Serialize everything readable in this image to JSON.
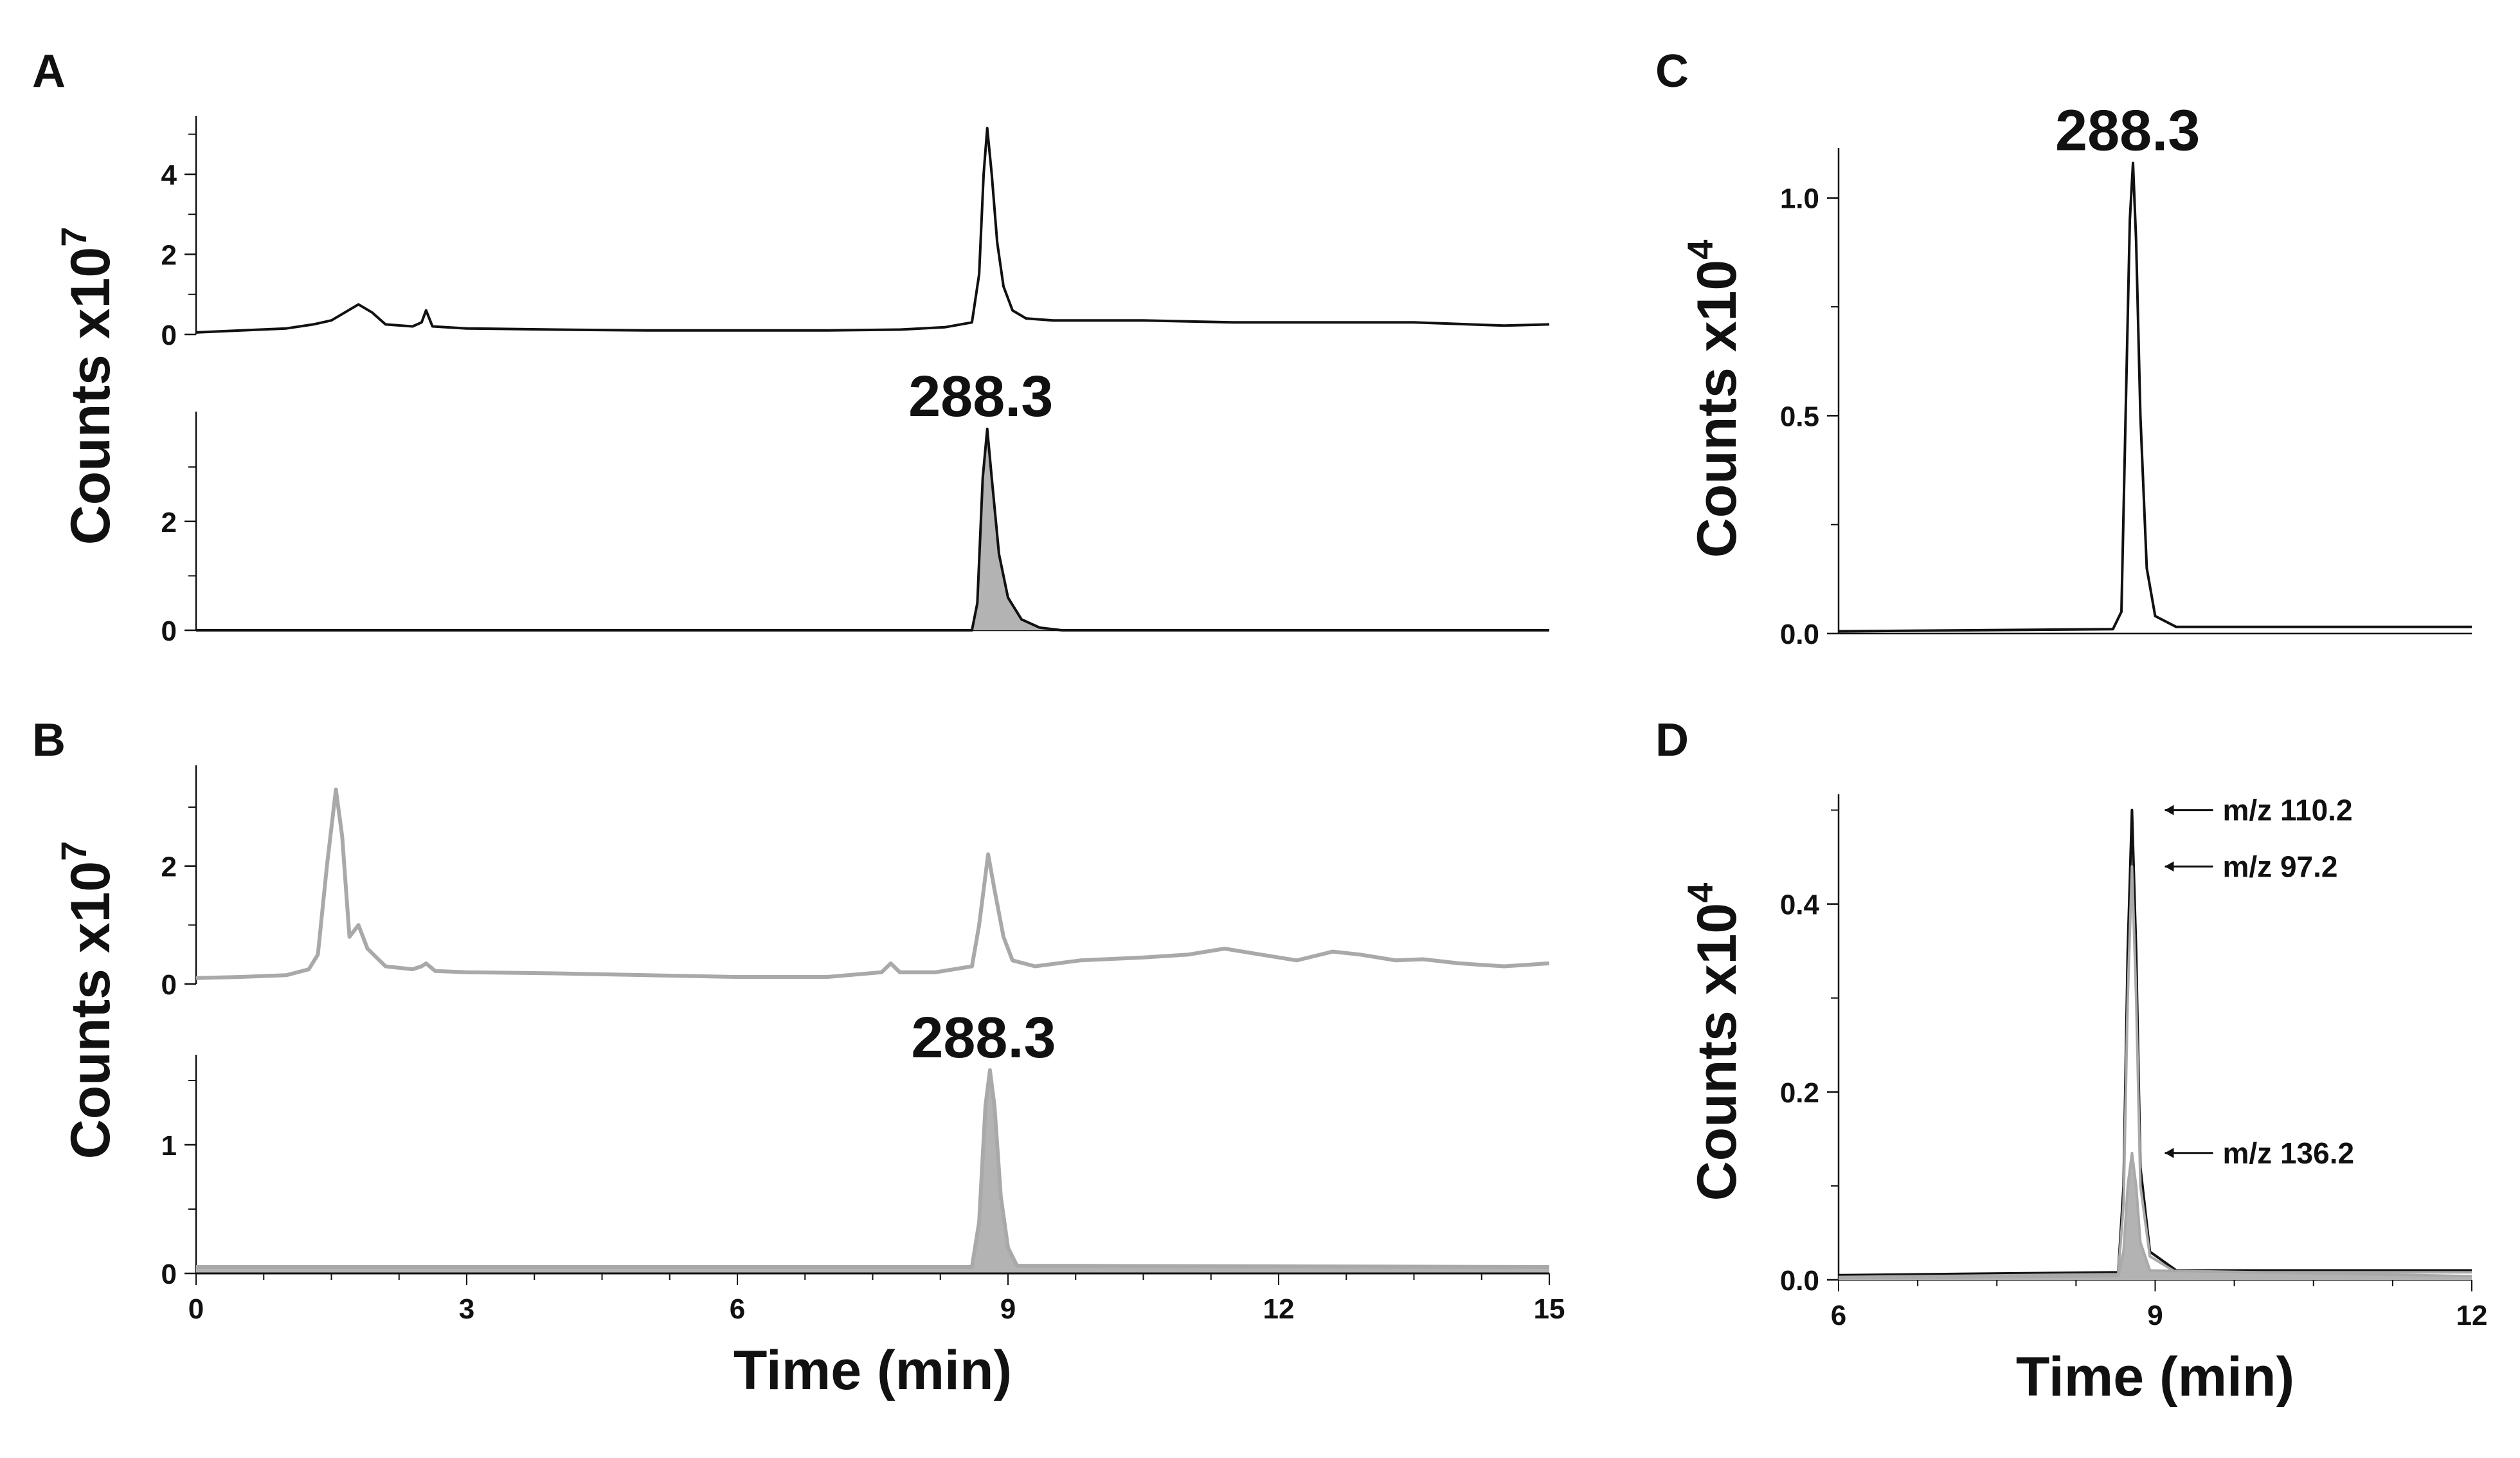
{
  "panels": {
    "A": {
      "letter": "A",
      "ylabel": "Counts x10",
      "ylabel_sup": "7"
    },
    "B": {
      "letter": "B",
      "ylabel": "Counts x10",
      "ylabel_sup": "7"
    },
    "C": {
      "letter": "C",
      "ylabel": "Counts x10",
      "ylabel_sup": "4"
    },
    "D": {
      "letter": "D",
      "ylabel": "Counts x10",
      "ylabel_sup": "4"
    }
  },
  "colors": {
    "black_trace": "#111111",
    "gray_trace": "#a9a9a9",
    "fill": "#b3b3b3"
  },
  "chart_data": [
    {
      "id": "A-top",
      "type": "line",
      "panel": "A",
      "xlim": [
        0,
        15
      ],
      "ylim": [
        0,
        5.3
      ],
      "yticks": [
        0,
        2,
        4
      ],
      "series": [
        {
          "color": "black",
          "points": [
            [
              0,
              0.05
            ],
            [
              0.5,
              0.1
            ],
            [
              1.0,
              0.15
            ],
            [
              1.3,
              0.25
            ],
            [
              1.5,
              0.35
            ],
            [
              1.65,
              0.55
            ],
            [
              1.8,
              0.75
            ],
            [
              1.95,
              0.55
            ],
            [
              2.1,
              0.25
            ],
            [
              2.4,
              0.2
            ],
            [
              2.5,
              0.3
            ],
            [
              2.55,
              0.6
            ],
            [
              2.62,
              0.2
            ],
            [
              3.0,
              0.15
            ],
            [
              4.0,
              0.12
            ],
            [
              5.0,
              0.1
            ],
            [
              6.0,
              0.1
            ],
            [
              7.0,
              0.1
            ],
            [
              7.8,
              0.12
            ],
            [
              8.3,
              0.18
            ],
            [
              8.6,
              0.3
            ],
            [
              8.68,
              1.5
            ],
            [
              8.73,
              4.0
            ],
            [
              8.77,
              5.15
            ],
            [
              8.82,
              4.0
            ],
            [
              8.88,
              2.3
            ],
            [
              8.95,
              1.2
            ],
            [
              9.05,
              0.6
            ],
            [
              9.2,
              0.4
            ],
            [
              9.5,
              0.35
            ],
            [
              10.5,
              0.35
            ],
            [
              11.5,
              0.3
            ],
            [
              12.5,
              0.3
            ],
            [
              13.5,
              0.3
            ],
            [
              14.5,
              0.22
            ],
            [
              15,
              0.25
            ]
          ]
        }
      ]
    },
    {
      "id": "A-bottom",
      "type": "line",
      "panel": "A",
      "xlim": [
        0,
        15
      ],
      "ylim": [
        0,
        3.9
      ],
      "yticks": [
        0,
        2
      ],
      "annotations": [
        {
          "text": "288.3",
          "x": 8.77
        }
      ],
      "series": [
        {
          "color": "black",
          "filled": true,
          "points": [
            [
              0,
              0
            ],
            [
              8.6,
              0
            ],
            [
              8.66,
              0.5
            ],
            [
              8.72,
              2.8
            ],
            [
              8.77,
              3.7
            ],
            [
              8.82,
              2.8
            ],
            [
              8.9,
              1.4
            ],
            [
              9.0,
              0.6
            ],
            [
              9.15,
              0.2
            ],
            [
              9.35,
              0.05
            ],
            [
              9.6,
              0
            ],
            [
              15,
              0
            ]
          ]
        }
      ]
    },
    {
      "id": "B-top",
      "type": "line",
      "panel": "B",
      "xlim": [
        0,
        15
      ],
      "ylim": [
        0,
        3.6
      ],
      "yticks": [
        0,
        2
      ],
      "series": [
        {
          "color": "gray",
          "points": [
            [
              0,
              0.1
            ],
            [
              0.5,
              0.12
            ],
            [
              1.0,
              0.15
            ],
            [
              1.25,
              0.25
            ],
            [
              1.35,
              0.5
            ],
            [
              1.45,
              2.0
            ],
            [
              1.55,
              3.3
            ],
            [
              1.62,
              2.5
            ],
            [
              1.7,
              0.8
            ],
            [
              1.8,
              1.0
            ],
            [
              1.9,
              0.6
            ],
            [
              2.1,
              0.3
            ],
            [
              2.4,
              0.25
            ],
            [
              2.5,
              0.3
            ],
            [
              2.55,
              0.35
            ],
            [
              2.65,
              0.22
            ],
            [
              3.0,
              0.2
            ],
            [
              4.0,
              0.18
            ],
            [
              5.0,
              0.15
            ],
            [
              6.0,
              0.12
            ],
            [
              7.0,
              0.12
            ],
            [
              7.6,
              0.2
            ],
            [
              7.7,
              0.35
            ],
            [
              7.8,
              0.2
            ],
            [
              8.2,
              0.2
            ],
            [
              8.6,
              0.3
            ],
            [
              8.68,
              1.0
            ],
            [
              8.78,
              2.2
            ],
            [
              8.85,
              1.6
            ],
            [
              8.95,
              0.8
            ],
            [
              9.05,
              0.4
            ],
            [
              9.3,
              0.3
            ],
            [
              9.8,
              0.4
            ],
            [
              10.5,
              0.45
            ],
            [
              11.0,
              0.5
            ],
            [
              11.4,
              0.6
            ],
            [
              11.8,
              0.5
            ],
            [
              12.2,
              0.4
            ],
            [
              12.6,
              0.55
            ],
            [
              12.9,
              0.5
            ],
            [
              13.3,
              0.4
            ],
            [
              13.6,
              0.42
            ],
            [
              14.0,
              0.35
            ],
            [
              14.5,
              0.3
            ],
            [
              15,
              0.35
            ]
          ]
        }
      ]
    },
    {
      "id": "B-bottom",
      "type": "line",
      "panel": "B",
      "xlim": [
        0,
        15
      ],
      "ylim": [
        0,
        1.65
      ],
      "yticks": [
        0,
        1
      ],
      "annotations": [
        {
          "text": "288.3",
          "x": 8.8
        }
      ],
      "series": [
        {
          "color": "gray",
          "filled": true,
          "points": [
            [
              0,
              0.05
            ],
            [
              8.6,
              0.05
            ],
            [
              8.68,
              0.4
            ],
            [
              8.75,
              1.3
            ],
            [
              8.8,
              1.58
            ],
            [
              8.85,
              1.3
            ],
            [
              8.92,
              0.6
            ],
            [
              9.0,
              0.2
            ],
            [
              9.1,
              0.06
            ],
            [
              15,
              0.05
            ]
          ]
        }
      ]
    },
    {
      "id": "C",
      "type": "line",
      "panel": "C",
      "xlim": [
        6,
        12
      ],
      "ylim": [
        0,
        1.1
      ],
      "yticks": [
        0.0,
        0.5,
        1.0
      ],
      "annotations": [
        {
          "text": "288.3",
          "x": 8.8
        }
      ],
      "series": [
        {
          "color": "black",
          "points": [
            [
              6,
              0.005
            ],
            [
              8.6,
              0.01
            ],
            [
              8.68,
              0.05
            ],
            [
              8.72,
              0.5
            ],
            [
              8.76,
              0.95
            ],
            [
              8.79,
              1.08
            ],
            [
              8.82,
              0.9
            ],
            [
              8.86,
              0.5
            ],
            [
              8.92,
              0.15
            ],
            [
              9.0,
              0.04
            ],
            [
              9.2,
              0.015
            ],
            [
              12,
              0.015
            ]
          ]
        }
      ]
    },
    {
      "id": "D",
      "type": "line",
      "panel": "D",
      "xlim": [
        6,
        12
      ],
      "ylim": [
        0,
        0.51
      ],
      "yticks": [
        0.0,
        0.2,
        0.4
      ],
      "xticks": [
        6,
        9,
        12
      ],
      "xlabel": "Time (min)",
      "annotations": [
        {
          "text": "m/z 110.2",
          "y": 0.5
        },
        {
          "text": "m/z 97.2",
          "y": 0.44
        },
        {
          "text": "m/z 136.2",
          "y": 0.135
        }
      ],
      "series": [
        {
          "name": "m/z 110.2",
          "color": "black",
          "points": [
            [
              6,
              0.005
            ],
            [
              8.65,
              0.008
            ],
            [
              8.7,
              0.1
            ],
            [
              8.74,
              0.35
            ],
            [
              8.78,
              0.5
            ],
            [
              8.82,
              0.35
            ],
            [
              8.86,
              0.12
            ],
            [
              8.95,
              0.03
            ],
            [
              9.2,
              0.01
            ],
            [
              12,
              0.01
            ]
          ]
        },
        {
          "name": "m/z 97.2",
          "color": "gray",
          "points": [
            [
              6,
              0.003
            ],
            [
              8.65,
              0.006
            ],
            [
              8.7,
              0.08
            ],
            [
              8.74,
              0.3
            ],
            [
              8.78,
              0.44
            ],
            [
              8.82,
              0.3
            ],
            [
              8.86,
              0.1
            ],
            [
              8.95,
              0.025
            ],
            [
              9.2,
              0.008
            ],
            [
              12,
              0.008
            ]
          ]
        },
        {
          "name": "m/z 136.2",
          "color": "gray",
          "filled": true,
          "points": [
            [
              6,
              0.002
            ],
            [
              8.65,
              0.004
            ],
            [
              8.7,
              0.03
            ],
            [
              8.74,
              0.1
            ],
            [
              8.78,
              0.135
            ],
            [
              8.82,
              0.1
            ],
            [
              8.86,
              0.04
            ],
            [
              8.95,
              0.01
            ],
            [
              12,
              0.004
            ]
          ]
        }
      ]
    },
    {
      "id": "B-xaxis",
      "type": "axis",
      "panel": "B",
      "xlim": [
        0,
        15
      ],
      "xticks": [
        0,
        3,
        6,
        9,
        12,
        15
      ],
      "xlabel": "Time (min)"
    }
  ]
}
